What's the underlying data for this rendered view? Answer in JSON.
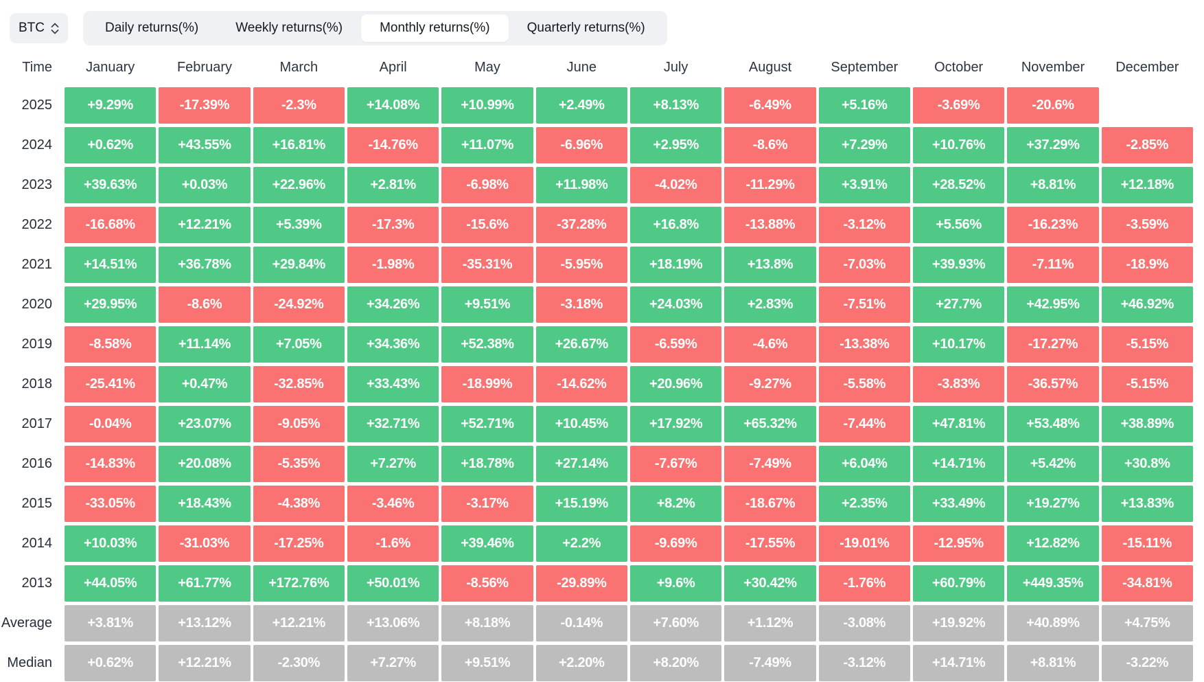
{
  "toolbar": {
    "symbol_selector": {
      "value": "BTC",
      "icon": "updown-chevrons"
    },
    "tabs": [
      {
        "label": "Daily returns(%)",
        "active": false
      },
      {
        "label": "Weekly returns(%)",
        "active": false
      },
      {
        "label": "Monthly returns(%)",
        "active": true
      },
      {
        "label": "Quarterly returns(%)",
        "active": false
      }
    ]
  },
  "table": {
    "corner_label": "Time",
    "months": [
      "January",
      "February",
      "March",
      "April",
      "May",
      "June",
      "July",
      "August",
      "September",
      "October",
      "November",
      "December"
    ],
    "rows": [
      {
        "label": "2025",
        "type": "year",
        "values": [
          "+9.29%",
          "-17.39%",
          "-2.3%",
          "+14.08%",
          "+10.99%",
          "+2.49%",
          "+8.13%",
          "-6.49%",
          "+5.16%",
          "-3.69%",
          "-20.6%",
          null
        ]
      },
      {
        "label": "2024",
        "type": "year",
        "values": [
          "+0.62%",
          "+43.55%",
          "+16.81%",
          "-14.76%",
          "+11.07%",
          "-6.96%",
          "+2.95%",
          "-8.6%",
          "+7.29%",
          "+10.76%",
          "+37.29%",
          "-2.85%"
        ]
      },
      {
        "label": "2023",
        "type": "year",
        "values": [
          "+39.63%",
          "+0.03%",
          "+22.96%",
          "+2.81%",
          "-6.98%",
          "+11.98%",
          "-4.02%",
          "-11.29%",
          "+3.91%",
          "+28.52%",
          "+8.81%",
          "+12.18%"
        ]
      },
      {
        "label": "2022",
        "type": "year",
        "values": [
          "-16.68%",
          "+12.21%",
          "+5.39%",
          "-17.3%",
          "-15.6%",
          "-37.28%",
          "+16.8%",
          "-13.88%",
          "-3.12%",
          "+5.56%",
          "-16.23%",
          "-3.59%"
        ]
      },
      {
        "label": "2021",
        "type": "year",
        "values": [
          "+14.51%",
          "+36.78%",
          "+29.84%",
          "-1.98%",
          "-35.31%",
          "-5.95%",
          "+18.19%",
          "+13.8%",
          "-7.03%",
          "+39.93%",
          "-7.11%",
          "-18.9%"
        ]
      },
      {
        "label": "2020",
        "type": "year",
        "values": [
          "+29.95%",
          "-8.6%",
          "-24.92%",
          "+34.26%",
          "+9.51%",
          "-3.18%",
          "+24.03%",
          "+2.83%",
          "-7.51%",
          "+27.7%",
          "+42.95%",
          "+46.92%"
        ]
      },
      {
        "label": "2019",
        "type": "year",
        "values": [
          "-8.58%",
          "+11.14%",
          "+7.05%",
          "+34.36%",
          "+52.38%",
          "+26.67%",
          "-6.59%",
          "-4.6%",
          "-13.38%",
          "+10.17%",
          "-17.27%",
          "-5.15%"
        ]
      },
      {
        "label": "2018",
        "type": "year",
        "values": [
          "-25.41%",
          "+0.47%",
          "-32.85%",
          "+33.43%",
          "-18.99%",
          "-14.62%",
          "+20.96%",
          "-9.27%",
          "-5.58%",
          "-3.83%",
          "-36.57%",
          "-5.15%"
        ]
      },
      {
        "label": "2017",
        "type": "year",
        "values": [
          "-0.04%",
          "+23.07%",
          "-9.05%",
          "+32.71%",
          "+52.71%",
          "+10.45%",
          "+17.92%",
          "+65.32%",
          "-7.44%",
          "+47.81%",
          "+53.48%",
          "+38.89%"
        ]
      },
      {
        "label": "2016",
        "type": "year",
        "values": [
          "-14.83%",
          "+20.08%",
          "-5.35%",
          "+7.27%",
          "+18.78%",
          "+27.14%",
          "-7.67%",
          "-7.49%",
          "+6.04%",
          "+14.71%",
          "+5.42%",
          "+30.8%"
        ]
      },
      {
        "label": "2015",
        "type": "year",
        "values": [
          "-33.05%",
          "+18.43%",
          "-4.38%",
          "-3.46%",
          "-3.17%",
          "+15.19%",
          "+8.2%",
          "-18.67%",
          "+2.35%",
          "+33.49%",
          "+19.27%",
          "+13.83%"
        ]
      },
      {
        "label": "2014",
        "type": "year",
        "values": [
          "+10.03%",
          "-31.03%",
          "-17.25%",
          "-1.6%",
          "+39.46%",
          "+2.2%",
          "-9.69%",
          "-17.55%",
          "-19.01%",
          "-12.95%",
          "+12.82%",
          "-15.11%"
        ]
      },
      {
        "label": "2013",
        "type": "year",
        "values": [
          "+44.05%",
          "+61.77%",
          "+172.76%",
          "+50.01%",
          "-8.56%",
          "-29.89%",
          "+9.6%",
          "+30.42%",
          "-1.76%",
          "+60.79%",
          "+449.35%",
          "-34.81%"
        ]
      },
      {
        "label": "Average",
        "type": "summary",
        "values": [
          "+3.81%",
          "+13.12%",
          "+12.21%",
          "+13.06%",
          "+8.18%",
          "-0.14%",
          "+7.60%",
          "+1.12%",
          "-3.08%",
          "+19.92%",
          "+40.89%",
          "+4.75%"
        ]
      },
      {
        "label": "Median",
        "type": "summary",
        "values": [
          "+0.62%",
          "+12.21%",
          "-2.30%",
          "+7.27%",
          "+9.51%",
          "+2.20%",
          "+8.20%",
          "-7.49%",
          "-3.12%",
          "+14.71%",
          "+8.81%",
          "-3.22%"
        ]
      }
    ]
  },
  "colors": {
    "positive": "#51C986",
    "negative": "#FA7272",
    "summary": "#BDBDBD",
    "toolbar_bg": "#EFF1F4",
    "text_dark": "#15181E"
  }
}
